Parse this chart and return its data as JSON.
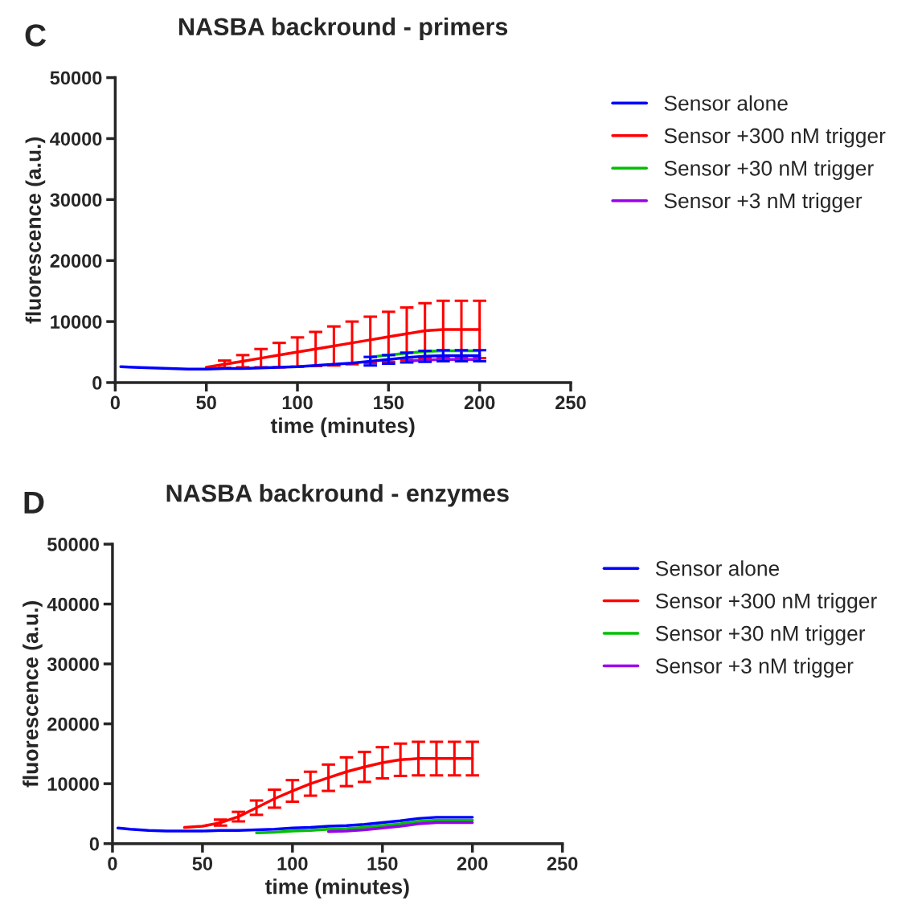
{
  "chart_data": [
    {
      "type": "line",
      "title": "NASBA backround - primers",
      "xlabel": "time (minutes)",
      "ylabel": "fluorescence (a.u.)",
      "annotations": [
        "C"
      ],
      "x": [
        3,
        10,
        20,
        30,
        40,
        50,
        60,
        70,
        80,
        90,
        100,
        110,
        120,
        130,
        140,
        150,
        160,
        170,
        180,
        190,
        200
      ],
      "xlim": [
        0,
        250
      ],
      "xticks": [
        0,
        50,
        100,
        150,
        200,
        250
      ],
      "ylim": [
        0,
        50000
      ],
      "yticks": [
        0,
        10000,
        20000,
        30000,
        40000,
        50000
      ],
      "grid": false,
      "legend": "right",
      "marker": "none",
      "line_style": "solid",
      "series": [
        {
          "name": "Sensor alone",
          "color": "#0000ff",
          "values": [
            2600,
            2500,
            2400,
            2300,
            2200,
            2200,
            2300,
            2300,
            2400,
            2500,
            2600,
            2800,
            3000,
            3200,
            3500,
            3800,
            4100,
            4300,
            4400,
            4400,
            4400
          ],
          "errors": [
            null,
            null,
            null,
            null,
            null,
            null,
            null,
            null,
            null,
            null,
            null,
            null,
            null,
            null,
            700,
            700,
            800,
            900,
            900,
            900,
            900
          ]
        },
        {
          "name": "Sensor +300 nM trigger",
          "color": "#ff0000",
          "values": [
            null,
            null,
            null,
            null,
            null,
            2500,
            3000,
            3500,
            4000,
            4500,
            5000,
            5500,
            6000,
            6500,
            7000,
            7500,
            8000,
            8500,
            8700,
            8700,
            8700
          ],
          "errors": [
            null,
            null,
            null,
            null,
            null,
            null,
            600,
            1000,
            1500,
            2000,
            2400,
            2800,
            3200,
            3500,
            3800,
            4100,
            4300,
            4500,
            4700,
            4700,
            4700
          ]
        },
        {
          "name": "Sensor +30 nM trigger",
          "color": "#00c000",
          "values": [
            null,
            null,
            null,
            null,
            null,
            null,
            null,
            null,
            null,
            null,
            null,
            null,
            null,
            null,
            4200,
            4500,
            4800,
            5100,
            5200,
            5200,
            5200
          ]
        },
        {
          "name": "Sensor +3 nM trigger",
          "color": "#9900ee",
          "values": [
            null,
            null,
            null,
            null,
            null,
            null,
            null,
            null,
            null,
            null,
            null,
            null,
            null,
            null,
            null,
            null,
            3500,
            3700,
            3800,
            3800,
            3800
          ]
        }
      ]
    },
    {
      "type": "line",
      "title": "NASBA backround - enzymes",
      "xlabel": "time (minutes)",
      "ylabel": "fluorescence (a.u.)",
      "annotations": [
        "D"
      ],
      "x": [
        3,
        10,
        20,
        30,
        40,
        50,
        60,
        70,
        80,
        90,
        100,
        110,
        120,
        130,
        140,
        150,
        160,
        170,
        180,
        190,
        200
      ],
      "xlim": [
        0,
        250
      ],
      "xticks": [
        0,
        50,
        100,
        150,
        200,
        250
      ],
      "ylim": [
        0,
        50000
      ],
      "yticks": [
        0,
        10000,
        20000,
        30000,
        40000,
        50000
      ],
      "grid": false,
      "legend": "right",
      "marker": "none",
      "line_style": "solid",
      "series": [
        {
          "name": "Sensor alone",
          "color": "#0000ff",
          "values": [
            2600,
            2400,
            2200,
            2100,
            2100,
            2100,
            2200,
            2200,
            2300,
            2400,
            2600,
            2700,
            2900,
            3000,
            3200,
            3500,
            3800,
            4200,
            4400,
            4400,
            4400
          ]
        },
        {
          "name": "Sensor +300 nM trigger",
          "color": "#ff0000",
          "values": [
            null,
            null,
            null,
            null,
            2700,
            2900,
            3500,
            4500,
            6000,
            7500,
            8800,
            10000,
            11000,
            12000,
            12800,
            13500,
            14000,
            14200,
            14200,
            14200,
            14200
          ],
          "errors": [
            null,
            null,
            null,
            null,
            null,
            null,
            500,
            800,
            1200,
            1500,
            1800,
            2000,
            2200,
            2400,
            2500,
            2600,
            2700,
            2800,
            2800,
            2800,
            2800
          ]
        },
        {
          "name": "Sensor +30 nM trigger",
          "color": "#00c000",
          "values": [
            null,
            null,
            null,
            null,
            null,
            null,
            null,
            null,
            1800,
            1900,
            2100,
            2200,
            2400,
            2500,
            2700,
            3000,
            3300,
            3700,
            3900,
            3900,
            3900
          ]
        },
        {
          "name": "Sensor +3 nM trigger",
          "color": "#9900ee",
          "values": [
            null,
            null,
            null,
            null,
            null,
            null,
            null,
            null,
            null,
            null,
            null,
            null,
            2000,
            2100,
            2300,
            2600,
            2900,
            3300,
            3500,
            3500,
            3500
          ]
        }
      ]
    }
  ]
}
